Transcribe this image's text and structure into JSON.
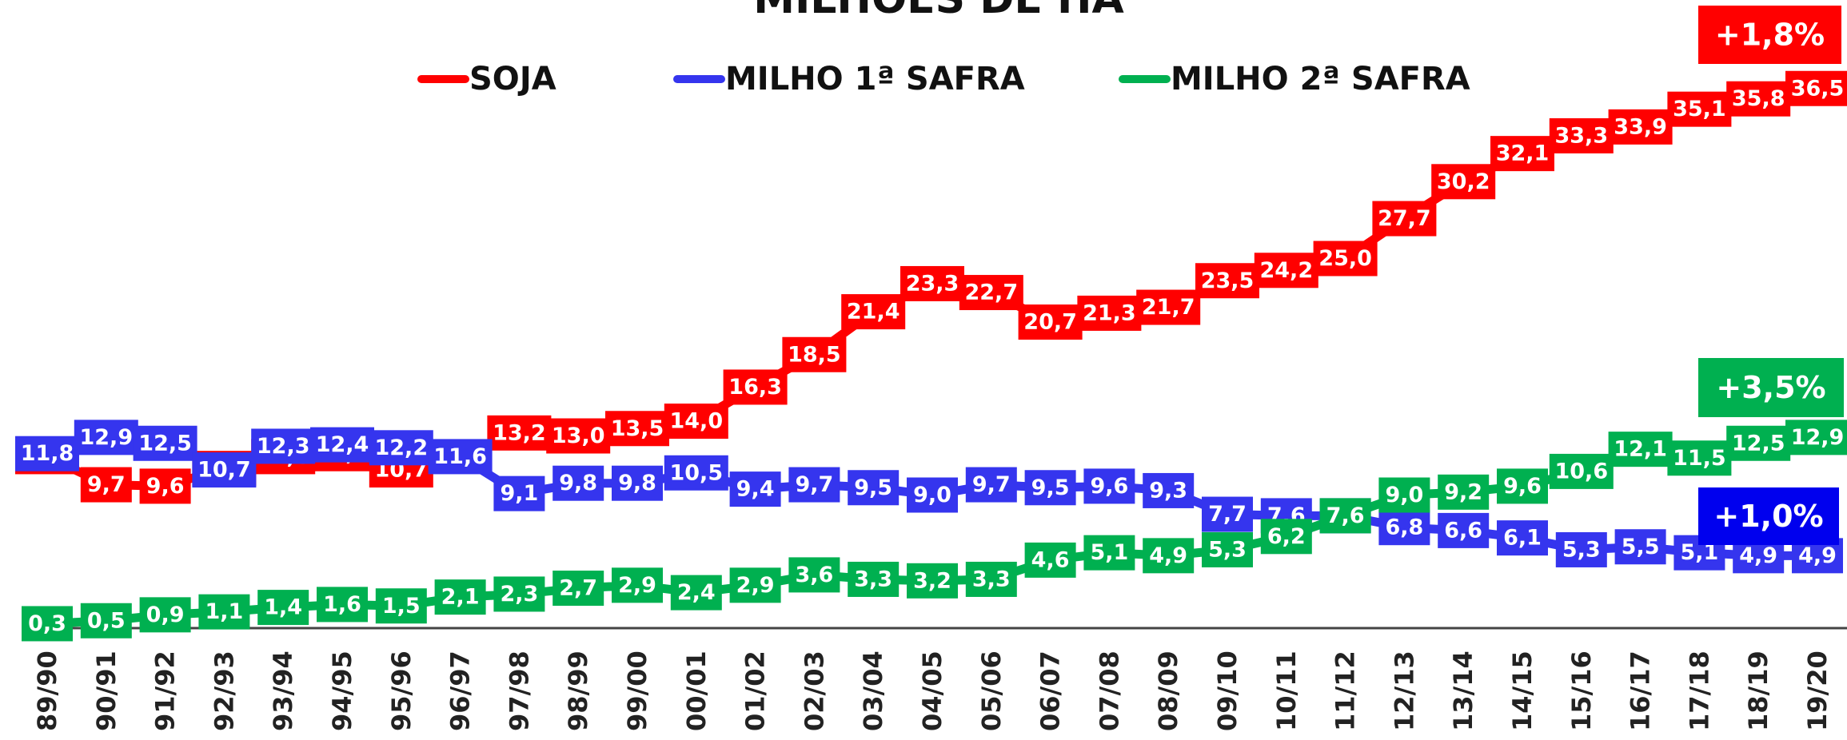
{
  "chart_data": {
    "type": "line",
    "title": "MILHÕES DE HA",
    "categories": [
      "89/90",
      "90/91",
      "91/92",
      "92/93",
      "93/94",
      "94/95",
      "95/96",
      "96/97",
      "97/98",
      "98/99",
      "99/00",
      "00/01",
      "01/02",
      "02/03",
      "03/04",
      "04/05",
      "05/06",
      "06/07",
      "07/08",
      "08/09",
      "09/10",
      "10/11",
      "11/12",
      "12/13",
      "13/14",
      "14/15",
      "15/16",
      "16/17",
      "17/18",
      "18/19",
      "19/20"
    ],
    "ylim": [
      0,
      40
    ],
    "series": [
      {
        "name": "SOJA",
        "color": "#ff0000",
        "values": [
          11.6,
          9.7,
          9.6,
          10.8,
          11.6,
          11.8,
          10.7,
          11.5,
          13.2,
          13.0,
          13.5,
          14.0,
          16.3,
          18.5,
          21.4,
          23.3,
          22.7,
          20.7,
          21.3,
          21.7,
          23.5,
          24.2,
          25.0,
          27.7,
          30.2,
          32.1,
          33.3,
          33.9,
          35.1,
          35.8,
          36.5
        ],
        "value_labels": [
          "11,6",
          "9,7",
          "9,6",
          "10,8",
          "11,6",
          "11,8",
          "10,7",
          null,
          "13,2",
          "13,0",
          "13,5",
          "14,0",
          "16,3",
          "18,5",
          "21,4",
          "23,3",
          "22,7",
          "20,7",
          "21,3",
          "21,7",
          "23,5",
          "24,2",
          "25,0",
          "27,7",
          "30,2",
          "32,1",
          "33,3",
          "33,9",
          "35,1",
          "35,8",
          "36,5"
        ]
      },
      {
        "name": "MILHO 1ª SAFRA",
        "color": "#3535ee",
        "values": [
          11.8,
          12.9,
          12.5,
          10.7,
          12.3,
          12.4,
          12.2,
          11.6,
          9.1,
          9.8,
          9.8,
          10.5,
          9.4,
          9.7,
          9.5,
          9.0,
          9.7,
          9.5,
          9.6,
          9.3,
          7.7,
          7.6,
          7.6,
          6.8,
          6.6,
          6.1,
          5.3,
          5.5,
          5.1,
          4.9,
          4.9
        ],
        "value_labels": [
          "11,8",
          "12,9",
          "12,5",
          "10,7",
          "12,3",
          "12,4",
          "12,2",
          "11,6",
          "9,1",
          "9,8",
          "9,8",
          "10,5",
          "9,4",
          "9,7",
          "9,5",
          "9,0",
          "9,7",
          "9,5",
          "9,6",
          "9,3",
          "7,7",
          "7,6",
          "7,6",
          "6,8",
          "6,6",
          "6,1",
          "5,3",
          "5,5",
          "5,1",
          "4,9",
          "4,9"
        ]
      },
      {
        "name": "MILHO 2ª SAFRA",
        "color": "#00b050",
        "values": [
          0.3,
          0.5,
          0.9,
          1.1,
          1.4,
          1.6,
          1.5,
          2.1,
          2.3,
          2.7,
          2.9,
          2.4,
          2.9,
          3.6,
          3.3,
          3.2,
          3.3,
          4.6,
          5.1,
          4.9,
          5.3,
          6.2,
          7.6,
          9.0,
          9.2,
          9.6,
          10.6,
          12.1,
          11.5,
          12.5,
          12.9
        ],
        "value_labels": [
          "0,3",
          "0,5",
          "0,9",
          "1,1",
          "1,4",
          "1,6",
          "1,5",
          "2,1",
          "2,3",
          "2,7",
          "2,9",
          "2,4",
          "2,9",
          "3,6",
          "3,3",
          "3,2",
          "3,3",
          "4,6",
          "5,1",
          "4,9",
          "5,3",
          "6,2",
          "7,6",
          "9,0",
          "9,2",
          "9,6",
          "10,6",
          "12,1",
          "11,5",
          "12,5",
          "12,9"
        ]
      }
    ],
    "annotations": [
      {
        "text": "+1,8%",
        "color": "#ff0000"
      },
      {
        "text": "+3,5%",
        "color": "#00b050"
      },
      {
        "text": "+1,0%",
        "color": "#0000ee"
      }
    ]
  }
}
